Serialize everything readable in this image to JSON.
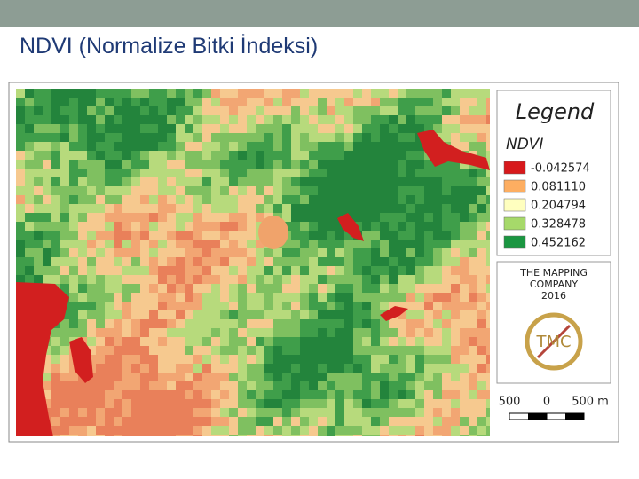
{
  "title": "NDVI (Normalize Bitki İndeksi)",
  "legend": {
    "title": "Legend",
    "subtitle": "NDVI",
    "items": [
      {
        "label": "-0.042574",
        "color": "#d7191c"
      },
      {
        "label": "0.081110",
        "color": "#fdae61"
      },
      {
        "label": "0.204794",
        "color": "#ffffbf"
      },
      {
        "label": "0.328478",
        "color": "#a6d96a"
      },
      {
        "label": "0.452162",
        "color": "#1a9641"
      }
    ]
  },
  "logo": {
    "lines": [
      "THE MAPPING",
      "COMPANY",
      "2016"
    ],
    "mark": "TMC"
  },
  "scale_bar": {
    "labels": [
      "500",
      "0",
      "500 m"
    ]
  }
}
